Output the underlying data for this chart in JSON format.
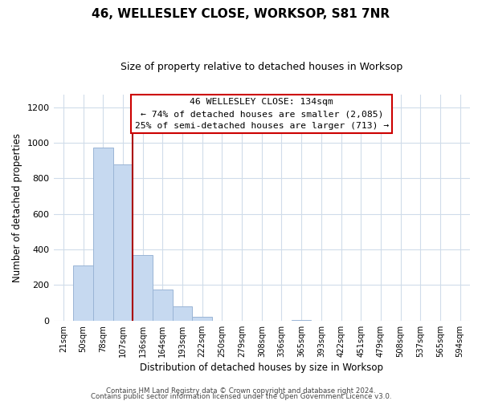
{
  "title": "46, WELLESLEY CLOSE, WORKSOP, S81 7NR",
  "subtitle": "Size of property relative to detached houses in Worksop",
  "xlabel": "Distribution of detached houses by size in Worksop",
  "ylabel": "Number of detached properties",
  "bar_color": "#c6d9f0",
  "bar_edge_color": "#9ab5d5",
  "bin_labels": [
    "21sqm",
    "50sqm",
    "78sqm",
    "107sqm",
    "136sqm",
    "164sqm",
    "193sqm",
    "222sqm",
    "250sqm",
    "279sqm",
    "308sqm",
    "336sqm",
    "365sqm",
    "393sqm",
    "422sqm",
    "451sqm",
    "479sqm",
    "508sqm",
    "537sqm",
    "565sqm",
    "594sqm"
  ],
  "bar_values": [
    0,
    310,
    975,
    880,
    370,
    175,
    80,
    20,
    0,
    0,
    0,
    0,
    5,
    0,
    0,
    0,
    0,
    0,
    0,
    0,
    0
  ],
  "ylim": [
    0,
    1270
  ],
  "yticks": [
    0,
    200,
    400,
    600,
    800,
    1000,
    1200
  ],
  "vline_x_index": 3,
  "vline_color": "#aa0000",
  "annotation_title": "46 WELLESLEY CLOSE: 134sqm",
  "annotation_line1": "← 74% of detached houses are smaller (2,085)",
  "annotation_line2": "25% of semi-detached houses are larger (713) →",
  "annotation_box_color": "#ffffff",
  "annotation_box_edge_color": "#cc0000",
  "footer1": "Contains HM Land Registry data © Crown copyright and database right 2024.",
  "footer2": "Contains public sector information licensed under the Open Government Licence v3.0.",
  "background_color": "#ffffff",
  "grid_color": "#d0dcea"
}
